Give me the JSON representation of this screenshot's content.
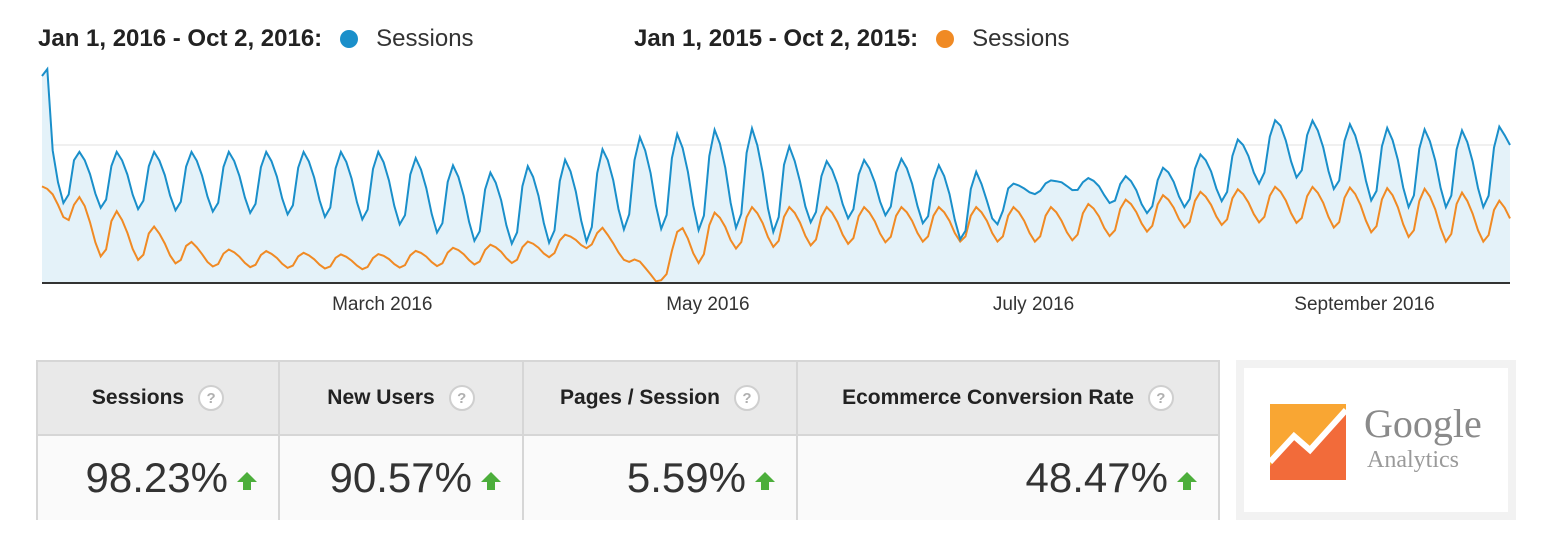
{
  "legend": {
    "current": {
      "range": "Jan 1, 2016 - Oct 2, 2016:",
      "series": "Sessions",
      "color": "#1a8fca"
    },
    "previous": {
      "range": "Jan 1, 2015 - Oct 2, 2015:",
      "series": "Sessions",
      "color": "#f08a24"
    }
  },
  "chart_data": {
    "type": "area",
    "x_tick_labels": [
      "March 2016",
      "May 2016",
      "July 2016",
      "September 2016"
    ],
    "x_tick_dates": [
      "2016-03-01",
      "2016-05-01",
      "2016-07-01",
      "2016-09-01"
    ],
    "x_range": [
      "2016-01-01",
      "2016-10-02"
    ],
    "grid": true,
    "series": [
      {
        "name": "Sessions",
        "period": "Jan 1, 2016 - Oct 2, 2016",
        "color": "#1a8fca",
        "anchor_dates": [
          "2016-01-01",
          "2016-01-02",
          "2016-01-03",
          "2016-01-08",
          "2016-02-15",
          "2016-03-05",
          "2016-03-25",
          "2016-04-12",
          "2016-04-20",
          "2016-05-05",
          "2016-05-10",
          "2016-05-15",
          "2016-05-25",
          "2016-06-10",
          "2016-06-25",
          "2016-07-01",
          "2016-07-10",
          "2016-07-25",
          "2016-08-10",
          "2016-08-20",
          "2016-09-10",
          "2016-09-28",
          "2016-10-01",
          "2016-10-02"
        ],
        "anchor_troughs": [
          150,
          155,
          60,
          55,
          50,
          45,
          28,
          30,
          40,
          38,
          40,
          35,
          45,
          50,
          25,
          60,
          70,
          50,
          60,
          80,
          55,
          55,
          62,
          100
        ],
        "anchor_peaks": [
          150,
          155,
          120,
          95,
          95,
          95,
          80,
          92,
          105,
          110,
          115,
          110,
          88,
          90,
          80,
          72,
          75,
          78,
          100,
          120,
          112,
          110,
          115,
          100
        ]
      },
      {
        "name": "Sessions",
        "period": "Jan 1, 2015 - Oct 2, 2015",
        "color": "#f08a24",
        "anchor_dates": [
          "2016-01-01",
          "2016-01-10",
          "2016-02-01",
          "2016-03-01",
          "2016-04-01",
          "2016-04-15",
          "2016-04-25",
          "2016-04-30",
          "2016-05-10",
          "2016-06-10",
          "2016-07-10",
          "2016-08-01",
          "2016-08-20",
          "2016-09-20",
          "2016-10-02"
        ],
        "anchor_troughs": [
          70,
          20,
          12,
          10,
          15,
          28,
          0,
          10,
          25,
          30,
          30,
          40,
          45,
          30,
          30
        ],
        "anchor_peaks": [
          70,
          60,
          25,
          20,
          30,
          40,
          5,
          45,
          55,
          55,
          55,
          65,
          70,
          68,
          58
        ]
      }
    ]
  },
  "metrics": [
    {
      "label": "Sessions",
      "value": "98.23%",
      "trend": "up"
    },
    {
      "label": "New Users",
      "value": "90.57%",
      "trend": "up"
    },
    {
      "label": "Pages / Session",
      "value": "5.59%",
      "trend": "up"
    },
    {
      "label": "Ecommerce Conversion Rate",
      "value": "48.47%",
      "trend": "up"
    }
  ],
  "logo": {
    "line1": "Google",
    "line2": "Analytics"
  },
  "colors": {
    "up_arrow": "#4cae3b",
    "area_fill": "#e4f2f9",
    "axis": "#333333",
    "gridline": "#e2e2e2"
  },
  "help_glyph": "?"
}
